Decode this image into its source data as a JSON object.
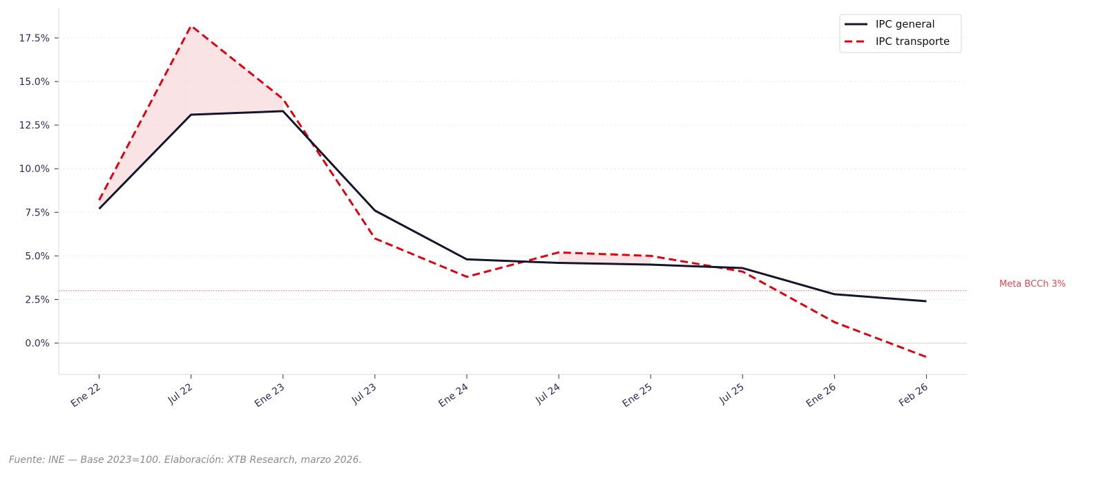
{
  "chart_data": {
    "type": "line",
    "title": "",
    "xlabel": "",
    "ylabel": "",
    "categories": [
      "Ene 22",
      "Jul 22",
      "Ene 23",
      "Jul 23",
      "Ene 24",
      "Jul 24",
      "Ene 25",
      "Jul 25",
      "Ene 26",
      "Feb 26"
    ],
    "series": [
      {
        "name": "IPC general",
        "color": "#14142b",
        "style": "solid",
        "values": [
          7.7,
          13.1,
          13.3,
          7.6,
          4.8,
          4.6,
          4.5,
          4.3,
          2.8,
          2.4
        ]
      },
      {
        "name": "IPC transporte",
        "color": "#e3000f",
        "style": "dashed",
        "values": [
          8.2,
          18.2,
          14.0,
          6.0,
          3.8,
          5.2,
          5.0,
          4.1,
          1.2,
          -0.8
        ]
      }
    ],
    "fill_between": {
      "where": "IPC transporte > IPC general",
      "color": "#f8d7da"
    },
    "yticks": [
      0,
      2.5,
      5,
      7.5,
      10,
      12.5,
      15,
      17.5
    ],
    "ytick_labels": [
      "0.0%",
      "2.5%",
      "5.0%",
      "7.5%",
      "10.0%",
      "12.5%",
      "15.0%",
      "17.5%"
    ],
    "ylim": [
      -1.8,
      19.2
    ],
    "grid": "horizontal dotted",
    "legend": "top-right",
    "reference_line": {
      "value": 3,
      "label": "Meta BCCh 3%",
      "color": "#e8474f"
    }
  },
  "footnote": "Fuente: INE — Base 2023=100. Elaboración: XTB Research, marzo 2026."
}
